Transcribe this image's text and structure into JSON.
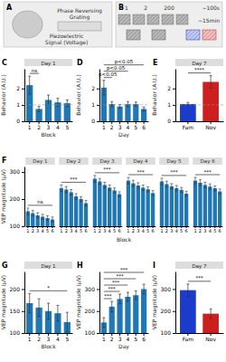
{
  "chart_data": [
    {
      "type": "diagram",
      "panel": "A",
      "annotations": [
        "Phase Reversing\nGrating",
        "Piezoelectric\nSignal (Voltage)"
      ]
    },
    {
      "type": "diagram",
      "panel": "B",
      "annotations": [
        "1",
        "2",
        "200",
        "~100s",
        "~15min"
      ]
    },
    {
      "type": "bar",
      "panel": "C",
      "title": "Day 1",
      "xlabel": "Block",
      "ylabel": "Behavior (A.U.)",
      "categories": [
        1,
        2,
        3,
        4,
        5
      ],
      "values": [
        2.2,
        0.75,
        1.3,
        1.15,
        1.1
      ],
      "errors": [
        0.55,
        0.15,
        0.3,
        0.25,
        0.2
      ],
      "ylim": [
        0,
        3.2
      ],
      "yticks": [
        0,
        1,
        2
      ],
      "hline": 1.0,
      "annotations": [
        {
          "text": "ns",
          "from": 1,
          "to": 2
        }
      ]
    },
    {
      "type": "bar",
      "panel": "D",
      "xlabel": "Day",
      "ylabel": "Behavior (A.U.)",
      "categories": [
        1,
        2,
        3,
        4,
        5,
        6
      ],
      "values": [
        2.05,
        1.05,
        0.9,
        1.05,
        1.05,
        0.75
      ],
      "errors": [
        0.45,
        0.15,
        0.12,
        0.15,
        0.12,
        0.12
      ],
      "ylim": [
        0,
        3.2
      ],
      "yticks": [
        0,
        1,
        2
      ],
      "hline": 1.0,
      "annotations": [
        {
          "text": "p<0.05",
          "from": 1,
          "to": 2
        },
        {
          "text": "p<0.05",
          "from": 1,
          "to": 4
        },
        {
          "text": "p<0.05",
          "from": 1,
          "to": 6
        }
      ]
    },
    {
      "type": "bar",
      "panel": "E",
      "title": "Day 7",
      "ylabel": "Behavior (A.U.)",
      "categories": [
        "Fam",
        "Nov"
      ],
      "values": [
        1.05,
        2.4
      ],
      "errors": [
        0.1,
        0.38
      ],
      "colors": [
        "#1a3bcc",
        "#cc2020"
      ],
      "ylim": [
        0,
        3.2
      ],
      "yticks": [
        0,
        1,
        2
      ],
      "hline": 1.0,
      "annotations": [
        {
          "text": "****",
          "from": "Fam",
          "to": "Nov"
        }
      ]
    },
    {
      "type": "bar",
      "panel": "F",
      "xlabel": "Block",
      "ylabel": "VEP magnitude (μV)",
      "categories": [
        1,
        2,
        3,
        4,
        5,
        6
      ],
      "series": [
        {
          "name": "Day 1",
          "values": [
            155,
            148,
            140,
            135,
            130,
            125
          ],
          "errors": [
            12,
            10,
            10,
            9,
            9,
            9
          ],
          "significance": "ns"
        },
        {
          "name": "Day 2",
          "values": [
            240,
            235,
            225,
            210,
            200,
            185
          ],
          "errors": [
            12,
            11,
            10,
            10,
            9,
            10
          ],
          "significance": "***"
        },
        {
          "name": "Day 3",
          "values": [
            275,
            265,
            252,
            242,
            232,
            218
          ],
          "errors": [
            12,
            11,
            10,
            10,
            9,
            9
          ],
          "significance": "***"
        },
        {
          "name": "Day 4",
          "values": [
            268,
            258,
            250,
            242,
            236,
            222
          ],
          "errors": [
            12,
            11,
            10,
            10,
            9,
            9
          ],
          "significance": "***"
        },
        {
          "name": "Day 5",
          "values": [
            265,
            255,
            247,
            240,
            234,
            220
          ],
          "errors": [
            12,
            11,
            10,
            10,
            9,
            9
          ],
          "significance": "***"
        },
        {
          "name": "Day 6",
          "values": [
            268,
            260,
            252,
            246,
            240,
            228
          ],
          "errors": [
            12,
            11,
            10,
            10,
            9,
            9
          ],
          "significance": "***"
        }
      ],
      "ylim": [
        100,
        320
      ],
      "yticks": [
        100,
        200,
        300
      ]
    },
    {
      "type": "bar",
      "panel": "G",
      "title": "Day 1",
      "xlabel": "Block",
      "ylabel": "VEP magnitude (μV)",
      "categories": [
        1,
        2,
        3,
        4,
        5
      ],
      "values": [
        168,
        158,
        150,
        145,
        125
      ],
      "errors": [
        22,
        20,
        18,
        18,
        22
      ],
      "ylim": [
        100,
        240
      ],
      "yticks": [
        100,
        150,
        200
      ],
      "annotations": [
        {
          "text": "*",
          "from": 1,
          "to": 5
        }
      ]
    },
    {
      "type": "bar",
      "panel": "H",
      "xlabel": "Day",
      "ylabel": "VEP magnitude (μV)",
      "categories": [
        1,
        2,
        3,
        4,
        5,
        6
      ],
      "values": [
        148,
        220,
        255,
        265,
        272,
        300
      ],
      "errors": [
        22,
        24,
        22,
        20,
        20,
        22
      ],
      "ylim": [
        100,
        380
      ],
      "yticks": [
        100,
        200,
        300
      ],
      "annotations": [
        {
          "text": "***",
          "from": 1,
          "to": 2
        },
        {
          "text": "***",
          "from": 1,
          "to": 3
        },
        {
          "text": "***",
          "from": 1,
          "to": 4
        },
        {
          "text": "***",
          "from": 1,
          "to": 5
        },
        {
          "text": "***",
          "from": 1,
          "to": 6
        }
      ]
    },
    {
      "type": "bar",
      "panel": "I",
      "title": "Day 7",
      "ylabel": "VEP magnitude (μV)",
      "categories": [
        "Fam",
        "Nov"
      ],
      "values": [
        295,
        188
      ],
      "errors": [
        28,
        22
      ],
      "colors": [
        "#1a3bcc",
        "#cc2020"
      ],
      "ylim": [
        100,
        380
      ],
      "yticks": [
        100,
        200,
        300
      ],
      "annotations": [
        {
          "text": "***",
          "from": "Fam",
          "to": "Nov"
        }
      ]
    }
  ]
}
